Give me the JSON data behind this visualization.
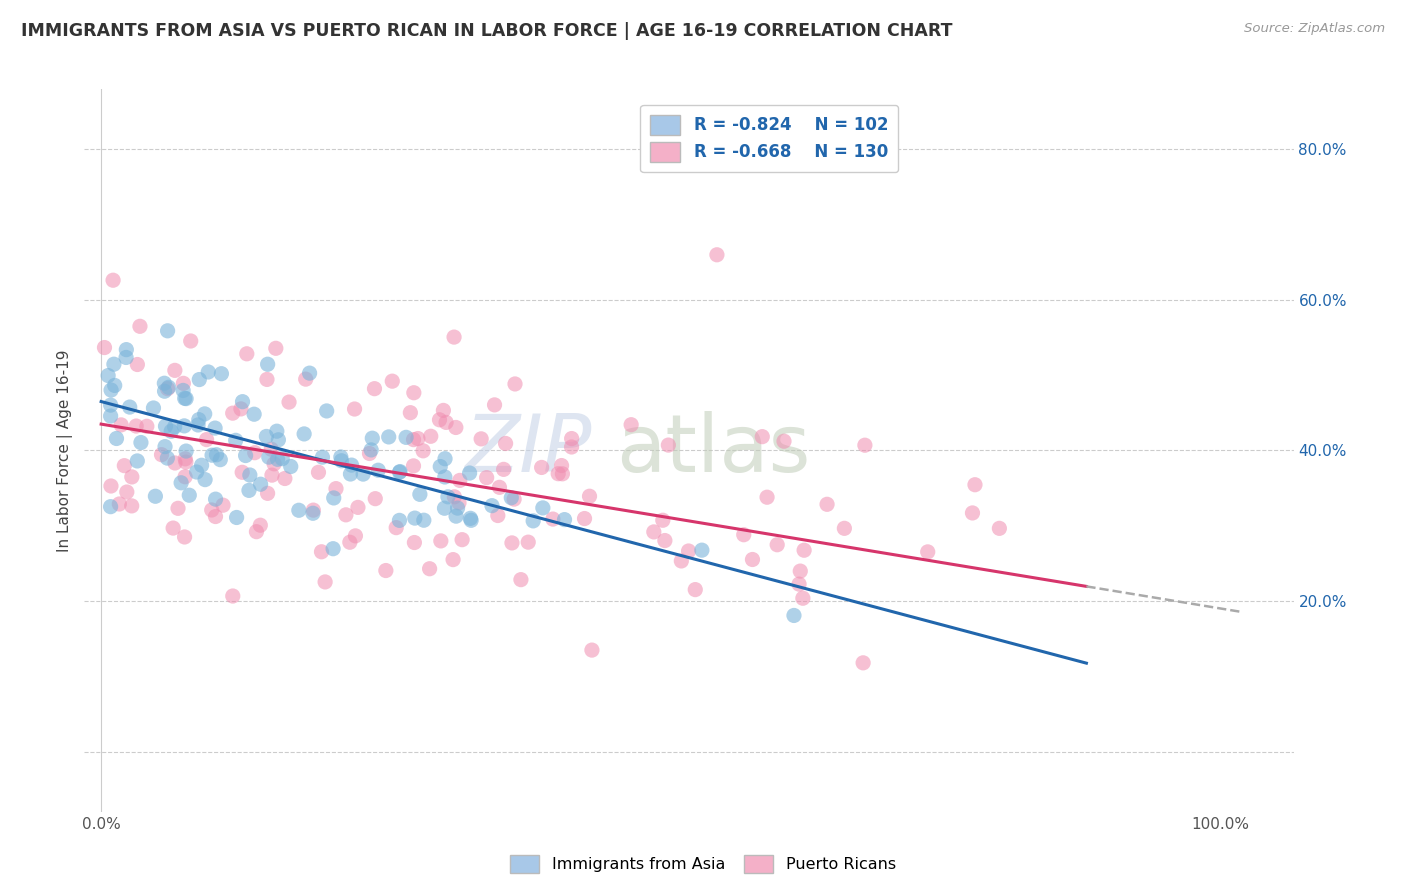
{
  "title": "IMMIGRANTS FROM ASIA VS PUERTO RICAN IN LABOR FORCE | AGE 16-19 CORRELATION CHART",
  "source": "Source: ZipAtlas.com",
  "ylabel": "In Labor Force | Age 16-19",
  "legend_r_asia": "-0.824",
  "legend_n_asia": "102",
  "legend_r_pr": "-0.668",
  "legend_n_pr": "130",
  "blue_scatter": "#7ab3d9",
  "pink_scatter": "#f08db0",
  "line_blue": "#2166ac",
  "line_pink": "#d6356b",
  "line_dash": "#aaaaaa",
  "intercept_asia": 0.465,
  "slope_asia": -0.395,
  "intercept_pr": 0.435,
  "slope_pr": -0.245,
  "asia_line_xend": 0.88,
  "pr_line_solid_xend": 0.88,
  "pr_line_dash_xend": 1.02,
  "grid_color": "#cccccc",
  "ytick_color": "#2166ac",
  "watermark_zip_color": "#c8d4e8",
  "watermark_atlas_color": "#c0ccb8"
}
